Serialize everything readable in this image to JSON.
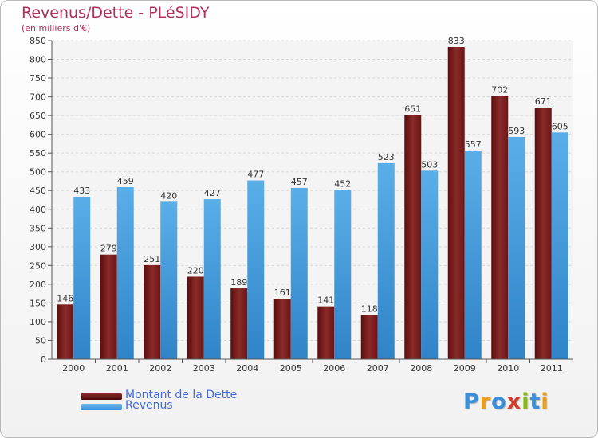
{
  "chart_data": {
    "type": "bar",
    "title": "Revenus/Dette - PLéSIDY",
    "subtitle": "(en milliers d'€)",
    "categories": [
      "2000",
      "2001",
      "2002",
      "2003",
      "2004",
      "2005",
      "2006",
      "2007",
      "2008",
      "2009",
      "2010",
      "2011"
    ],
    "series": [
      {
        "name": "Montant de la Dette",
        "color": "#7a1c1c",
        "values": [
          146,
          279,
          251,
          220,
          189,
          161,
          141,
          118,
          651,
          833,
          702,
          671
        ]
      },
      {
        "name": "Revenus",
        "color": "#4a9fdf",
        "values": [
          433,
          459,
          420,
          427,
          477,
          457,
          452,
          523,
          503,
          557,
          593,
          605
        ]
      }
    ],
    "ylim": [
      0,
      850
    ],
    "yticks": [
      0,
      50,
      100,
      150,
      200,
      250,
      300,
      350,
      400,
      450,
      500,
      550,
      600,
      650,
      700,
      750,
      800,
      850
    ],
    "grid": true,
    "legend_position": "bottom-left"
  },
  "logo": {
    "letters": [
      "P",
      "r",
      "o",
      "x",
      "i",
      "t",
      "i"
    ],
    "colors": [
      "#3a8fd8",
      "#e8a020",
      "#3a8fd8",
      "#d63a2a",
      "#8ab820",
      "#3a8fd8",
      "#e8a020"
    ]
  }
}
